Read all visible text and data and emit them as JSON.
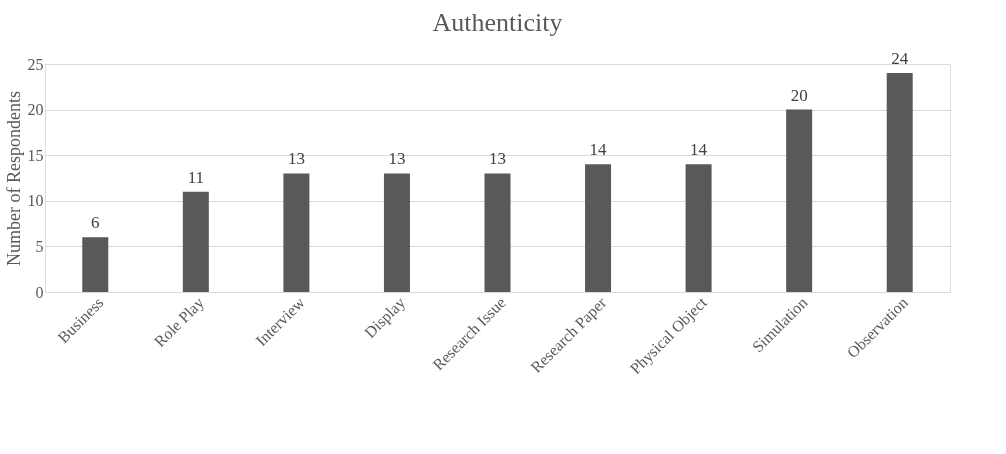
{
  "chart_data": {
    "type": "bar",
    "title": "Authenticity",
    "ylabel": "Number of Respondents",
    "categories": [
      "Business",
      "Role Play",
      "Interview",
      "Display",
      "Research Issue",
      "Research Paper",
      "Physical Object",
      "Simulation",
      "Observation"
    ],
    "values": [
      6,
      11,
      13,
      13,
      13,
      14,
      14,
      20,
      24
    ],
    "color": "#595959",
    "ylim": [
      0,
      25
    ],
    "yticks": [
      0,
      5,
      10,
      15,
      20,
      25
    ],
    "grid": "y",
    "data_labels": true
  }
}
